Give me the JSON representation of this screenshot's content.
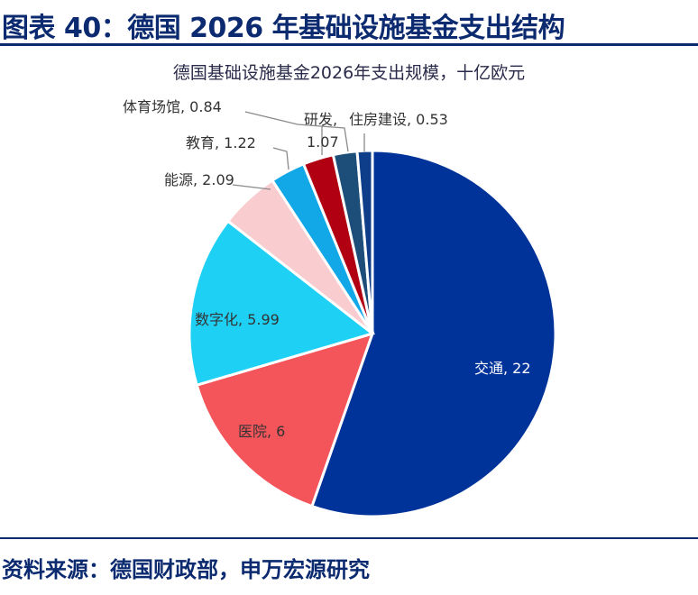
{
  "figure_title": "图表 40：德国 2026 年基础设施基金支出结构",
  "source": "资料来源：德国财政部，申万宏源研究",
  "colors": {
    "brand": "#0b2a6f",
    "slices": [
      "#003399",
      "#f4555a",
      "#1fd0f5",
      "#f9cdd0",
      "#12a8e8",
      "#b00012",
      "#1d4e79",
      "#0e3d8a"
    ]
  },
  "chart_data": {
    "type": "pie",
    "title": "德国基础设施基金2026年支出规模，十亿欧元",
    "start_angle_deg": 0,
    "direction": "clockwise",
    "slices": [
      {
        "label": "交通",
        "value": 22,
        "value_text": "22"
      },
      {
        "label": "医院",
        "value": 6,
        "value_text": "6"
      },
      {
        "label": "数字化",
        "value": 5.99,
        "value_text": "5.99"
      },
      {
        "label": "能源",
        "value": 2.09,
        "value_text": "2.09"
      },
      {
        "label": "教育",
        "value": 1.22,
        "value_text": "1.22"
      },
      {
        "label": "研发",
        "value": 1.07,
        "value_text": "1.07"
      },
      {
        "label": "体育场馆",
        "value": 0.84,
        "value_text": "0.84"
      },
      {
        "label": "住房建设",
        "value": 0.53,
        "value_text": "0.53"
      }
    ]
  }
}
